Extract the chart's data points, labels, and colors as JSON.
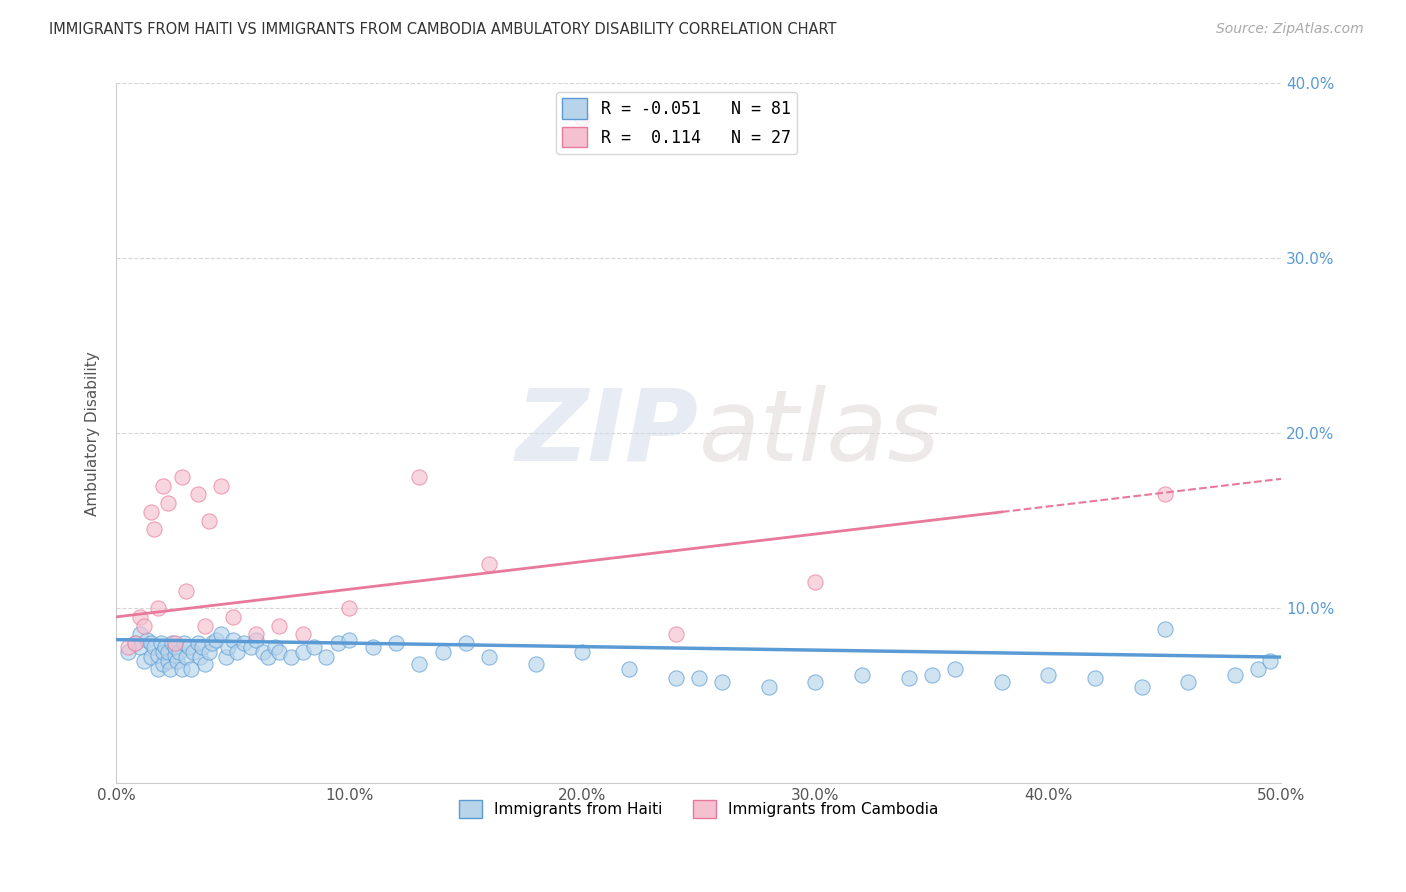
{
  "title": "IMMIGRANTS FROM HAITI VS IMMIGRANTS FROM CAMBODIA AMBULATORY DISABILITY CORRELATION CHART",
  "source": "Source: ZipAtlas.com",
  "ylabel": "Ambulatory Disability",
  "xlim": [
    0.0,
    0.5
  ],
  "ylim": [
    0.0,
    0.4
  ],
  "xticks": [
    0.0,
    0.1,
    0.2,
    0.3,
    0.4,
    0.5
  ],
  "yticks": [
    0.0,
    0.1,
    0.2,
    0.3,
    0.4
  ],
  "xtick_labels": [
    "0.0%",
    "10.0%",
    "20.0%",
    "30.0%",
    "40.0%",
    "50.0%"
  ],
  "right_ytick_labels": [
    "10.0%",
    "20.0%",
    "30.0%",
    "40.0%"
  ],
  "legend_r_haiti": "-0.051",
  "legend_n_haiti": "81",
  "legend_r_cambodia": "0.114",
  "legend_n_cambodia": "27",
  "haiti_color": "#b8d4ea",
  "cambodia_color": "#f5c0d0",
  "haiti_edge_color": "#5b9bd5",
  "cambodia_edge_color": "#e8799a",
  "haiti_line_color": "#5b9bd5",
  "cambodia_line_color": "#e8799a",
  "watermark1": "ZIP",
  "watermark2": "atlas",
  "haiti_x": [
    0.005,
    0.008,
    0.01,
    0.01,
    0.012,
    0.013,
    0.015,
    0.015,
    0.016,
    0.018,
    0.018,
    0.019,
    0.02,
    0.02,
    0.021,
    0.022,
    0.022,
    0.023,
    0.024,
    0.025,
    0.025,
    0.026,
    0.027,
    0.028,
    0.029,
    0.03,
    0.031,
    0.032,
    0.033,
    0.035,
    0.036,
    0.037,
    0.038,
    0.04,
    0.041,
    0.043,
    0.045,
    0.047,
    0.048,
    0.05,
    0.052,
    0.055,
    0.058,
    0.06,
    0.063,
    0.065,
    0.068,
    0.07,
    0.075,
    0.08,
    0.085,
    0.09,
    0.095,
    0.1,
    0.11,
    0.12,
    0.13,
    0.14,
    0.15,
    0.16,
    0.18,
    0.2,
    0.22,
    0.24,
    0.26,
    0.28,
    0.3,
    0.32,
    0.34,
    0.36,
    0.38,
    0.4,
    0.42,
    0.44,
    0.46,
    0.48,
    0.49,
    0.495,
    0.25,
    0.35,
    0.45
  ],
  "haiti_y": [
    0.075,
    0.08,
    0.078,
    0.085,
    0.07,
    0.082,
    0.072,
    0.08,
    0.078,
    0.065,
    0.073,
    0.08,
    0.068,
    0.075,
    0.078,
    0.07,
    0.075,
    0.065,
    0.08,
    0.073,
    0.078,
    0.07,
    0.075,
    0.065,
    0.08,
    0.072,
    0.078,
    0.065,
    0.075,
    0.08,
    0.072,
    0.078,
    0.068,
    0.075,
    0.08,
    0.082,
    0.085,
    0.072,
    0.078,
    0.082,
    0.075,
    0.08,
    0.078,
    0.082,
    0.075,
    0.072,
    0.078,
    0.075,
    0.072,
    0.075,
    0.078,
    0.072,
    0.08,
    0.082,
    0.078,
    0.08,
    0.068,
    0.075,
    0.08,
    0.072,
    0.068,
    0.075,
    0.065,
    0.06,
    0.058,
    0.055,
    0.058,
    0.062,
    0.06,
    0.065,
    0.058,
    0.062,
    0.06,
    0.055,
    0.058,
    0.062,
    0.065,
    0.07,
    0.06,
    0.062,
    0.088
  ],
  "cambodia_x": [
    0.005,
    0.008,
    0.01,
    0.012,
    0.015,
    0.016,
    0.018,
    0.02,
    0.022,
    0.025,
    0.028,
    0.03,
    0.035,
    0.038,
    0.04,
    0.045,
    0.05,
    0.06,
    0.07,
    0.08,
    0.1,
    0.13,
    0.16,
    0.2,
    0.24,
    0.3,
    0.45
  ],
  "cambodia_y": [
    0.078,
    0.08,
    0.095,
    0.09,
    0.155,
    0.145,
    0.1,
    0.17,
    0.16,
    0.08,
    0.175,
    0.11,
    0.165,
    0.09,
    0.15,
    0.17,
    0.095,
    0.085,
    0.09,
    0.085,
    0.1,
    0.175,
    0.125,
    0.38,
    0.085,
    0.115,
    0.165
  ],
  "haiti_trend_x": [
    0.0,
    0.5
  ],
  "haiti_trend_y": [
    0.082,
    0.072
  ],
  "cambodia_trend_x": [
    0.0,
    0.5
  ],
  "cambodia_trend_y": [
    0.095,
    0.175
  ],
  "cambodia_dashed_trend_x": [
    0.3,
    0.5
  ],
  "cambodia_dashed_trend_y": [
    0.155,
    0.175
  ]
}
